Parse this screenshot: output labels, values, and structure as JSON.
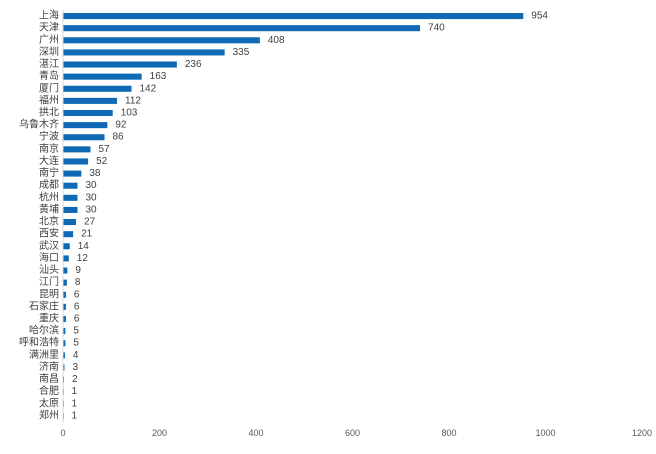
{
  "chart_data": {
    "type": "bar",
    "orientation": "horizontal",
    "title": "",
    "xlabel": "",
    "ylabel": "",
    "xlim": [
      0,
      1200
    ],
    "x_ticks": [
      0,
      200,
      400,
      600,
      800,
      1000,
      1200
    ],
    "grid": false,
    "legend": "none",
    "bar_color": "#0f69b4",
    "categories": [
      "上海",
      "天津",
      "广州",
      "深圳",
      "湛江",
      "青岛",
      "厦门",
      "福州",
      "拱北",
      "乌鲁木齐",
      "宁波",
      "南京",
      "大连",
      "南宁",
      "成都",
      "杭州",
      "黄埔",
      "北京",
      "西安",
      "武汉",
      "海口",
      "汕头",
      "江门",
      "昆明",
      "石家庄",
      "重庆",
      "哈尔滨",
      "呼和浩特",
      "满洲里",
      "济南",
      "南昌",
      "合肥",
      "太原",
      "郑州"
    ],
    "values": [
      954,
      740,
      408,
      335,
      236,
      163,
      142,
      112,
      103,
      92,
      86,
      57,
      52,
      38,
      30,
      30,
      30,
      27,
      21,
      14,
      12,
      9,
      8,
      6,
      6,
      6,
      5,
      5,
      4,
      3,
      2,
      1,
      1,
      1
    ]
  }
}
